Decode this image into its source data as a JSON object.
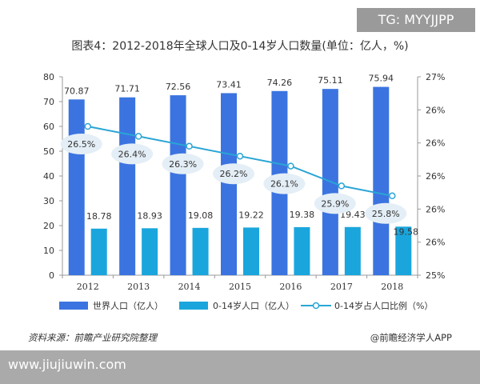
{
  "watermark_tag": "TG: MYYJJPP",
  "footer": {
    "source": "资料来源：前瞻产业研究院整理",
    "credit": "@前瞻经济学人APP",
    "url": "www.jiujiuwin.com"
  },
  "colors": {
    "world": "#3b74e0",
    "children": "#1aa6dd",
    "ratio": "#2aa5d6",
    "bubble": "#e4eef6"
  },
  "chart_data": {
    "type": "bar",
    "title": "图表4：2012-2018年全球人口及0-14岁人口数量(单位：亿人，%)",
    "categories": [
      "2012",
      "2013",
      "2014",
      "2015",
      "2016",
      "2017",
      "2018"
    ],
    "ylim": [
      0,
      80
    ],
    "y_ticks": [
      "0",
      "10",
      "20",
      "30",
      "40",
      "50",
      "60",
      "70",
      "80"
    ],
    "y2lim": [
      25,
      27
    ],
    "y2_ticks": [
      "25%",
      "26%",
      "26%",
      "26%",
      "26%",
      "26%",
      "27%"
    ],
    "series": [
      {
        "name": "世界人口（亿人）",
        "type": "bar",
        "axis": "left",
        "values": [
          70.87,
          71.71,
          72.56,
          73.41,
          74.26,
          75.11,
          75.94
        ],
        "labels": [
          "70.87",
          "71.71",
          "72.56",
          "73.41",
          "74.26",
          "75.11",
          "75.94"
        ]
      },
      {
        "name": "0-14岁人口（亿人）",
        "type": "bar",
        "axis": "left",
        "values": [
          18.78,
          18.93,
          19.08,
          19.22,
          19.38,
          19.43,
          19.58
        ],
        "labels": [
          "18.78",
          "18.93",
          "19.08",
          "19.22",
          "19.38",
          "19.43",
          "19.58"
        ]
      },
      {
        "name": "0-14岁占人口比例（%）",
        "type": "line",
        "axis": "right",
        "values": [
          26.5,
          26.4,
          26.3,
          26.2,
          26.1,
          25.9,
          25.8
        ],
        "labels": [
          "26.5%",
          "26.4%",
          "26.3%",
          "26.2%",
          "26.1%",
          "25.9%",
          "25.8%"
        ]
      }
    ],
    "grid": false,
    "legend_position": "bottom"
  }
}
